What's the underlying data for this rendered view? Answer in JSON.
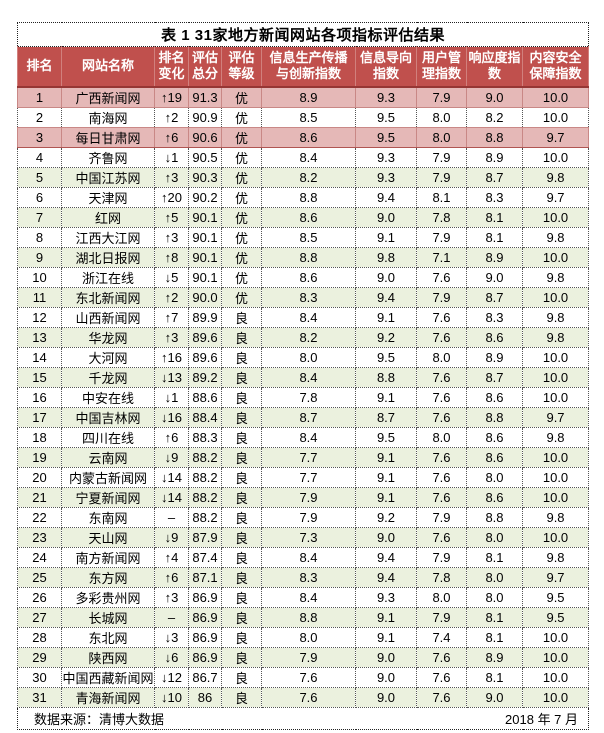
{
  "colors": {
    "header_bg": "#c0504d",
    "header_text": "#ffffff",
    "divider_dark_red": "#963634",
    "row_pink": "#e5b8b7",
    "row_green": "#ebf1de",
    "row_white": "#ffffff",
    "border_dotted": "#555555"
  },
  "chart_data": {
    "type": "table",
    "title": "表 1  31家地方新闻网站各项指标评估结果",
    "columns": [
      "排名",
      "网站名称",
      "排名\n变化",
      "评估\n总分",
      "评估\n等级",
      "信息生产传播\n与创新指数",
      "信息导向\n指数",
      "用户管\n理指数",
      "响应度指\n数",
      "内容安全\n保障指数"
    ],
    "rows": [
      {
        "rank": "1",
        "name": "广西新闻网",
        "change": "↑19",
        "score": "91.3",
        "grade": "优",
        "values": [
          "8.9",
          "9.3",
          "7.9",
          "9.0",
          "10.0"
        ],
        "bg": "pink"
      },
      {
        "rank": "2",
        "name": "南海网",
        "change": "↑2",
        "score": "90.9",
        "grade": "优",
        "values": [
          "8.5",
          "9.5",
          "8.0",
          "8.2",
          "10.0"
        ],
        "bg": "white"
      },
      {
        "rank": "3",
        "name": "每日甘肃网",
        "change": "↑6",
        "score": "90.6",
        "grade": "优",
        "values": [
          "8.6",
          "9.5",
          "8.0",
          "8.8",
          "9.7"
        ],
        "bg": "pink"
      },
      {
        "rank": "4",
        "name": "齐鲁网",
        "change": "↓1",
        "score": "90.5",
        "grade": "优",
        "values": [
          "8.4",
          "9.3",
          "7.9",
          "8.9",
          "10.0"
        ],
        "bg": "white"
      },
      {
        "rank": "5",
        "name": "中国江苏网",
        "change": "↑3",
        "score": "90.3",
        "grade": "优",
        "values": [
          "8.2",
          "9.3",
          "7.9",
          "8.7",
          "9.8"
        ],
        "bg": "green"
      },
      {
        "rank": "6",
        "name": "天津网",
        "change": "↑20",
        "score": "90.2",
        "grade": "优",
        "values": [
          "8.8",
          "9.4",
          "8.1",
          "8.3",
          "9.7"
        ],
        "bg": "white"
      },
      {
        "rank": "7",
        "name": "红网",
        "change": "↑5",
        "score": "90.1",
        "grade": "优",
        "values": [
          "8.6",
          "9.0",
          "7.8",
          "8.1",
          "10.0"
        ],
        "bg": "green"
      },
      {
        "rank": "8",
        "name": "江西大江网",
        "change": "↑3",
        "score": "90.1",
        "grade": "优",
        "values": [
          "8.5",
          "9.1",
          "7.9",
          "8.1",
          "9.8"
        ],
        "bg": "white"
      },
      {
        "rank": "9",
        "name": "湖北日报网",
        "change": "↑8",
        "score": "90.1",
        "grade": "优",
        "values": [
          "8.8",
          "9.8",
          "7.1",
          "8.9",
          "10.0"
        ],
        "bg": "green"
      },
      {
        "rank": "10",
        "name": "浙江在线",
        "change": "↓5",
        "score": "90.1",
        "grade": "优",
        "values": [
          "8.6",
          "9.0",
          "7.6",
          "9.0",
          "9.8"
        ],
        "bg": "white"
      },
      {
        "rank": "11",
        "name": "东北新闻网",
        "change": "↑2",
        "score": "90.0",
        "grade": "优",
        "values": [
          "8.3",
          "9.4",
          "7.9",
          "8.7",
          "10.0"
        ],
        "bg": "green"
      },
      {
        "rank": "12",
        "name": "山西新闻网",
        "change": "↑7",
        "score": "89.9",
        "grade": "良",
        "values": [
          "8.4",
          "9.1",
          "7.6",
          "8.3",
          "9.8"
        ],
        "bg": "white"
      },
      {
        "rank": "13",
        "name": "华龙网",
        "change": "↑3",
        "score": "89.6",
        "grade": "良",
        "values": [
          "8.2",
          "9.2",
          "7.6",
          "8.6",
          "9.8"
        ],
        "bg": "green"
      },
      {
        "rank": "14",
        "name": "大河网",
        "change": "↑16",
        "score": "89.6",
        "grade": "良",
        "values": [
          "8.0",
          "9.5",
          "8.0",
          "8.9",
          "10.0"
        ],
        "bg": "white"
      },
      {
        "rank": "15",
        "name": "千龙网",
        "change": "↓13",
        "score": "89.2",
        "grade": "良",
        "values": [
          "8.4",
          "8.8",
          "7.6",
          "8.7",
          "10.0"
        ],
        "bg": "green"
      },
      {
        "rank": "16",
        "name": "中安在线",
        "change": "↓1",
        "score": "88.6",
        "grade": "良",
        "values": [
          "7.8",
          "9.1",
          "7.6",
          "8.6",
          "10.0"
        ],
        "bg": "white"
      },
      {
        "rank": "17",
        "name": "中国吉林网",
        "change": "↓16",
        "score": "88.4",
        "grade": "良",
        "values": [
          "8.7",
          "8.7",
          "7.6",
          "8.8",
          "9.7"
        ],
        "bg": "green"
      },
      {
        "rank": "18",
        "name": "四川在线",
        "change": "↑6",
        "score": "88.3",
        "grade": "良",
        "values": [
          "8.4",
          "9.5",
          "8.0",
          "8.6",
          "9.8"
        ],
        "bg": "white"
      },
      {
        "rank": "19",
        "name": "云南网",
        "change": "↓9",
        "score": "88.2",
        "grade": "良",
        "values": [
          "7.7",
          "9.1",
          "7.6",
          "8.6",
          "10.0"
        ],
        "bg": "green"
      },
      {
        "rank": "20",
        "name": "内蒙古新闻网",
        "change": "↓14",
        "score": "88.2",
        "grade": "良",
        "values": [
          "7.7",
          "9.1",
          "7.6",
          "8.0",
          "10.0"
        ],
        "bg": "white"
      },
      {
        "rank": "21",
        "name": "宁夏新闻网",
        "change": "↓14",
        "score": "88.2",
        "grade": "良",
        "values": [
          "7.9",
          "9.1",
          "7.6",
          "8.6",
          "10.0"
        ],
        "bg": "green"
      },
      {
        "rank": "22",
        "name": "东南网",
        "change": "–",
        "score": "88.2",
        "grade": "良",
        "values": [
          "7.9",
          "9.2",
          "7.9",
          "8.8",
          "9.8"
        ],
        "bg": "white"
      },
      {
        "rank": "23",
        "name": "天山网",
        "change": "↓9",
        "score": "87.9",
        "grade": "良",
        "values": [
          "7.3",
          "9.0",
          "7.6",
          "8.0",
          "10.0"
        ],
        "bg": "green"
      },
      {
        "rank": "24",
        "name": "南方新闻网",
        "change": "↑4",
        "score": "87.4",
        "grade": "良",
        "values": [
          "8.4",
          "9.4",
          "7.9",
          "8.1",
          "9.8"
        ],
        "bg": "white"
      },
      {
        "rank": "25",
        "name": "东方网",
        "change": "↑6",
        "score": "87.1",
        "grade": "良",
        "values": [
          "8.3",
          "9.4",
          "7.8",
          "8.0",
          "9.7"
        ],
        "bg": "green"
      },
      {
        "rank": "26",
        "name": "多彩贵州网",
        "change": "↑3",
        "score": "86.9",
        "grade": "良",
        "values": [
          "8.4",
          "9.3",
          "8.0",
          "8.0",
          "9.5"
        ],
        "bg": "white"
      },
      {
        "rank": "27",
        "name": "长城网",
        "change": "–",
        "score": "86.9",
        "grade": "良",
        "values": [
          "8.8",
          "9.1",
          "7.9",
          "8.1",
          "9.5"
        ],
        "bg": "green"
      },
      {
        "rank": "28",
        "name": "东北网",
        "change": "↓3",
        "score": "86.9",
        "grade": "良",
        "values": [
          "8.0",
          "9.1",
          "7.4",
          "8.1",
          "10.0"
        ],
        "bg": "white"
      },
      {
        "rank": "29",
        "name": "陕西网",
        "change": "↓6",
        "score": "86.9",
        "grade": "良",
        "values": [
          "7.9",
          "9.0",
          "7.6",
          "8.9",
          "10.0"
        ],
        "bg": "green"
      },
      {
        "rank": "30",
        "name": "中国西藏新闻网",
        "change": "↓12",
        "score": "86.7",
        "grade": "良",
        "values": [
          "7.6",
          "9.0",
          "7.6",
          "8.1",
          "10.0"
        ],
        "bg": "white"
      },
      {
        "rank": "31",
        "name": "青海新闻网",
        "change": "↓10",
        "score": "86",
        "grade": "良",
        "values": [
          "7.6",
          "9.0",
          "7.6",
          "9.0",
          "10.0"
        ],
        "bg": "green"
      }
    ]
  },
  "footer": {
    "source": "数据来源：清博大数据",
    "date": "2018 年 7 月"
  }
}
